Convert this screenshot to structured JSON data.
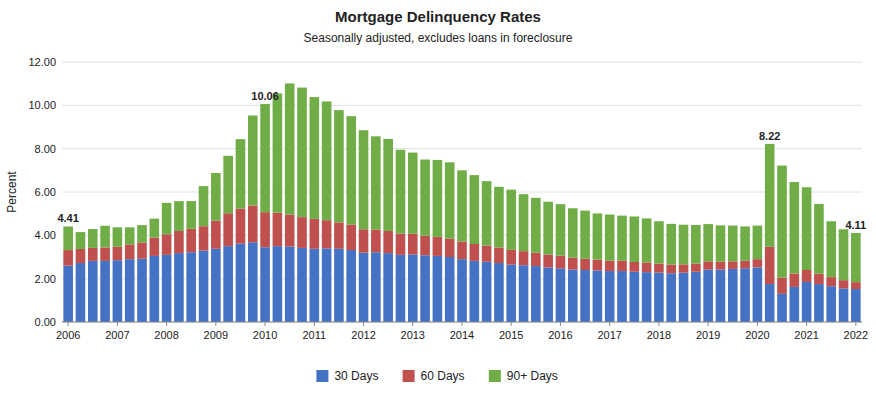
{
  "chart_data": {
    "type": "bar",
    "stacked": true,
    "title": "Mortgage Delinquency Rates",
    "subtitle": "Seasonally adjusted, excludes loans in foreclosure",
    "ylabel": "Percent",
    "ylim": [
      0,
      12.0
    ],
    "yticks": [
      {
        "value": 0.0,
        "label": "0.00"
      },
      {
        "value": 2.0,
        "label": "2.00"
      },
      {
        "value": 4.0,
        "label": "4.00"
      },
      {
        "value": 6.0,
        "label": "6.00"
      },
      {
        "value": 8.0,
        "label": "8.00"
      },
      {
        "value": 10.0,
        "label": "10.00"
      },
      {
        "value": 12.0,
        "label": "12.00"
      }
    ],
    "grid": true,
    "legend": "bottom",
    "categories": [
      "2006",
      null,
      null,
      null,
      "2007",
      null,
      null,
      null,
      "2008",
      null,
      null,
      null,
      "2009",
      null,
      null,
      null,
      "2010",
      null,
      null,
      null,
      "2011",
      null,
      null,
      null,
      "2012",
      null,
      null,
      null,
      "2013",
      null,
      null,
      null,
      "2014",
      null,
      null,
      null,
      "2015",
      null,
      null,
      null,
      "2016",
      null,
      null,
      null,
      "2017",
      null,
      null,
      null,
      "2018",
      null,
      null,
      null,
      "2019",
      null,
      null,
      null,
      "2020",
      null,
      null,
      null,
      "2021",
      null,
      null,
      null,
      "2022"
    ],
    "series": [
      {
        "name": "30 Days",
        "color": "#4472C4",
        "values": [
          2.6,
          2.72,
          2.82,
          2.82,
          2.85,
          2.9,
          2.92,
          3.05,
          3.1,
          3.18,
          3.22,
          3.3,
          3.38,
          3.5,
          3.62,
          3.68,
          3.45,
          3.5,
          3.48,
          3.42,
          3.38,
          3.4,
          3.38,
          3.32,
          3.2,
          3.22,
          3.18,
          3.1,
          3.12,
          3.08,
          3.05,
          3.0,
          2.9,
          2.82,
          2.78,
          2.72,
          2.65,
          2.62,
          2.58,
          2.52,
          2.48,
          2.42,
          2.4,
          2.38,
          2.35,
          2.35,
          2.32,
          2.3,
          2.28,
          2.25,
          2.28,
          2.32,
          2.42,
          2.42,
          2.45,
          2.48,
          2.52,
          1.75,
          1.3,
          1.62,
          1.85,
          1.75,
          1.65,
          1.55,
          1.52
        ]
      },
      {
        "name": "60 Days",
        "color": "#C0504D",
        "values": [
          0.72,
          0.65,
          0.6,
          0.62,
          0.62,
          0.68,
          0.75,
          0.85,
          0.95,
          1.02,
          1.08,
          1.12,
          1.3,
          1.52,
          1.62,
          1.7,
          1.62,
          1.55,
          1.48,
          1.42,
          1.38,
          1.3,
          1.22,
          1.18,
          1.08,
          1.05,
          1.02,
          0.98,
          0.95,
          0.9,
          0.88,
          0.85,
          0.82,
          0.78,
          0.75,
          0.72,
          0.68,
          0.65,
          0.62,
          0.6,
          0.58,
          0.55,
          0.52,
          0.5,
          0.48,
          0.48,
          0.45,
          0.45,
          0.42,
          0.4,
          0.38,
          0.38,
          0.38,
          0.36,
          0.35,
          0.35,
          0.38,
          1.72,
          0.75,
          0.62,
          0.55,
          0.48,
          0.42,
          0.38,
          0.32
        ]
      },
      {
        "name": "90+ Days",
        "color": "#70AD47",
        "values": [
          1.09,
          0.78,
          0.87,
          1.0,
          0.9,
          0.79,
          0.8,
          0.87,
          1.45,
          1.38,
          1.28,
          1.85,
          2.2,
          2.65,
          3.2,
          4.15,
          4.99,
          5.5,
          6.05,
          5.98,
          5.62,
          5.48,
          5.18,
          5.0,
          4.57,
          4.3,
          4.25,
          3.87,
          3.75,
          3.52,
          3.55,
          3.52,
          3.28,
          3.18,
          2.97,
          2.8,
          2.78,
          2.63,
          2.53,
          2.43,
          2.38,
          2.28,
          2.22,
          2.13,
          2.13,
          2.08,
          2.1,
          2.03,
          1.95,
          1.88,
          1.83,
          1.78,
          1.72,
          1.68,
          1.65,
          1.58,
          1.55,
          4.75,
          5.17,
          4.22,
          3.82,
          3.22,
          2.58,
          2.35,
          2.27
        ]
      }
    ],
    "annotations": [
      {
        "text": "4.41",
        "index": 0,
        "y": 4.41
      },
      {
        "text": "10.06",
        "index": 16,
        "y": 10.06
      },
      {
        "text": "8.22",
        "index": 57,
        "y": 8.22
      },
      {
        "text": "4.11",
        "index": 64,
        "y": 4.11
      }
    ]
  }
}
